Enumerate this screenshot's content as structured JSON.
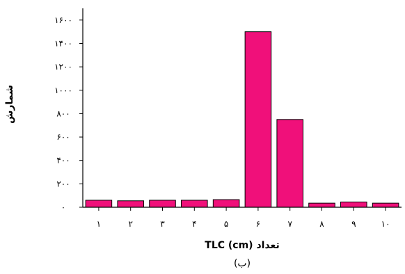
{
  "chart_data": {
    "type": "bar",
    "categories": [
      "۱",
      "۲",
      "۳",
      "۴",
      "۵",
      "۶",
      "۷",
      "۸",
      "۹",
      "۱۰"
    ],
    "values": [
      60,
      55,
      60,
      60,
      65,
      1500,
      750,
      35,
      45,
      35
    ],
    "ylim": [
      0,
      1700
    ],
    "yticks": [
      0,
      200,
      400,
      600,
      800,
      1000,
      1200,
      1400,
      1600
    ],
    "ytick_labels": [
      "۰",
      "۲۰۰",
      "۴۰۰",
      "۶۰۰",
      "۸۰۰",
      "۱۰۰۰",
      "۱۲۰۰",
      "۱۴۰۰",
      "۱۶۰۰"
    ],
    "xlabel": "تعداد TLC (cm)",
    "ylabel": "شمارش",
    "caption": "(ب)",
    "grid": false,
    "bar_color": "#f0107a",
    "bar_edge_color": "#000000"
  }
}
